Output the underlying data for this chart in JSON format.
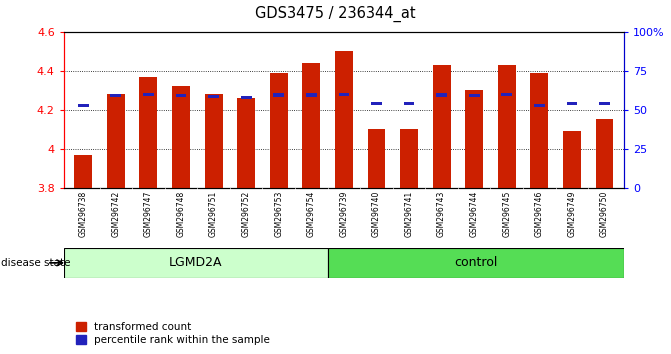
{
  "title": "GDS3475 / 236344_at",
  "samples": [
    "GSM296738",
    "GSM296742",
    "GSM296747",
    "GSM296748",
    "GSM296751",
    "GSM296752",
    "GSM296753",
    "GSM296754",
    "GSM296739",
    "GSM296740",
    "GSM296741",
    "GSM296743",
    "GSM296744",
    "GSM296745",
    "GSM296746",
    "GSM296749",
    "GSM296750"
  ],
  "red_values": [
    3.97,
    4.28,
    4.37,
    4.32,
    4.28,
    4.26,
    4.39,
    4.44,
    4.5,
    4.1,
    4.1,
    4.43,
    4.3,
    4.43,
    4.39,
    4.09,
    4.15
  ],
  "blue_values": [
    4.215,
    4.263,
    4.27,
    4.263,
    4.26,
    4.255,
    4.268,
    4.268,
    4.272,
    4.222,
    4.222,
    4.268,
    4.263,
    4.272,
    4.215,
    4.222,
    4.222
  ],
  "ymin": 3.8,
  "ymax": 4.6,
  "yticks_left": [
    3.8,
    4.0,
    4.2,
    4.4,
    4.6
  ],
  "ytick_labels_left": [
    "3.8",
    "4",
    "4.2",
    "4.4",
    "4.6"
  ],
  "yticks_right_vals": [
    0,
    25,
    50,
    75,
    100
  ],
  "ytick_labels_right": [
    "0",
    "25",
    "50",
    "75",
    "100%"
  ],
  "bar_color": "#CC2000",
  "blue_color": "#2222BB",
  "lgmd2a_color": "#CCFFCC",
  "control_color": "#55DD55",
  "tickarea_color": "#CCCCCC",
  "n_lgmd2a": 8,
  "legend_red_label": "transformed count",
  "legend_blue_label": "percentile rank within the sample",
  "disease_state_label": "disease state",
  "lgmd2a_label": "LGMD2A",
  "control_label": "control"
}
